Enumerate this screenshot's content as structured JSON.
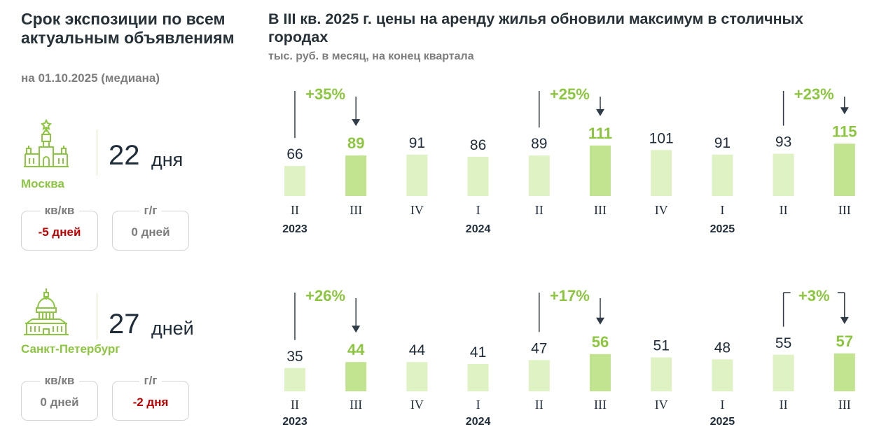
{
  "left_panel": {
    "title": "Срок экспозиции по всем актуальным объявлениям",
    "subtitle": "на 01.10.2025 (медиана)",
    "cities": [
      {
        "name": "Москва",
        "icon": "kremlin-icon",
        "days_value": "22",
        "days_unit": "дня",
        "qoq": {
          "label": "кв/кв",
          "value": "-5 дней",
          "color": "#c00000"
        },
        "yoy": {
          "label": "г/г",
          "value": "0 дней",
          "color": "#7d7d7d"
        }
      },
      {
        "name": "Санкт-Петербург",
        "icon": "capitol-dome-icon",
        "days_value": "27",
        "days_unit": "дней",
        "qoq": {
          "label": "кв/кв",
          "value": "0 дней",
          "color": "#7d7d7d"
        },
        "yoy": {
          "label": "г/г",
          "value": "-2 дня",
          "color": "#c00000"
        }
      }
    ]
  },
  "right_panel": {
    "title": "В III кв. 2025 г. цены на аренду жилья обновили максимум в столичных городах",
    "subtitle": "тыс. руб. в месяц, на конец квартала"
  },
  "colors": {
    "accent": "#8cc63f",
    "bar_light": "#dff2c4",
    "bar_highlight": "#c2e38f",
    "negative": "#c00000",
    "arrow": "#2f3b46"
  },
  "chart_data": [
    {
      "type": "bar",
      "city": "Москва",
      "categories": [
        "II",
        "III",
        "IV",
        "I",
        "II",
        "III",
        "IV",
        "I",
        "II",
        "III"
      ],
      "years": [
        {
          "label": "2023",
          "index": 0
        },
        {
          "label": "2024",
          "index": 3
        },
        {
          "label": "2025",
          "index": 7
        }
      ],
      "values": [
        66,
        89,
        91,
        86,
        89,
        111,
        101,
        91,
        93,
        115
      ],
      "highlight": [
        1,
        5,
        9
      ],
      "annotations": [
        {
          "from": 0,
          "to": 1,
          "text": "+35%"
        },
        {
          "from": 4,
          "to": 5,
          "text": "+25%"
        },
        {
          "from": 8,
          "to": 9,
          "text": "+23%"
        }
      ]
    },
    {
      "type": "bar",
      "city": "Санкт-Петербург",
      "categories": [
        "II",
        "III",
        "IV",
        "I",
        "II",
        "III",
        "IV",
        "I",
        "II",
        "III"
      ],
      "years": [
        {
          "label": "2023",
          "index": 0
        },
        {
          "label": "2024",
          "index": 3
        },
        {
          "label": "2025",
          "index": 7
        }
      ],
      "values": [
        35,
        44,
        44,
        41,
        47,
        56,
        51,
        48,
        55,
        57
      ],
      "highlight": [
        1,
        5,
        9
      ],
      "annotations": [
        {
          "from": 0,
          "to": 1,
          "text": "+26%"
        },
        {
          "from": 4,
          "to": 5,
          "text": "+17%"
        },
        {
          "from": 8,
          "to": 9,
          "text": "+3%"
        }
      ]
    }
  ]
}
